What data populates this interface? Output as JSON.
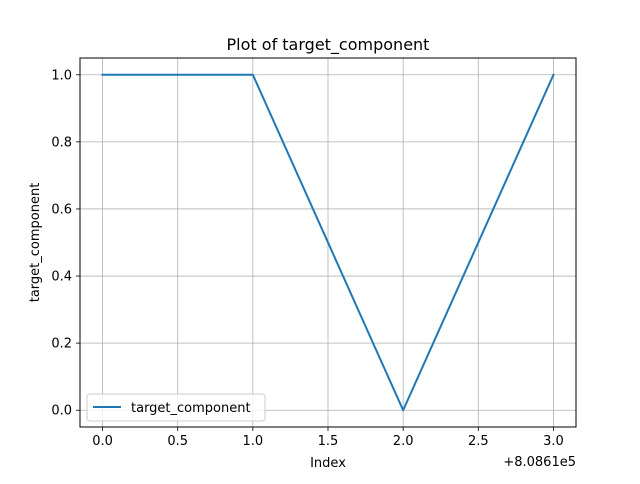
{
  "chart_data": {
    "type": "line",
    "title": "Plot of target_component",
    "xlabel": "Index",
    "ylabel": "target_component",
    "x_offset_label": "+8.0861e5",
    "x": [
      0,
      1,
      2,
      3
    ],
    "series": [
      {
        "name": "target_component",
        "color": "#1f77b4",
        "values": [
          1.0,
          1.0,
          0.0,
          1.0
        ]
      }
    ],
    "xticks": [
      "0.0",
      "0.5",
      "1.0",
      "1.5",
      "2.0",
      "2.5",
      "3.0"
    ],
    "yticks": [
      "0.0",
      "0.2",
      "0.4",
      "0.6",
      "0.8",
      "1.0"
    ],
    "xlim": [
      -0.15,
      3.15
    ],
    "ylim": [
      -0.05,
      1.05
    ],
    "grid": true,
    "legend_position": "lower-left"
  }
}
